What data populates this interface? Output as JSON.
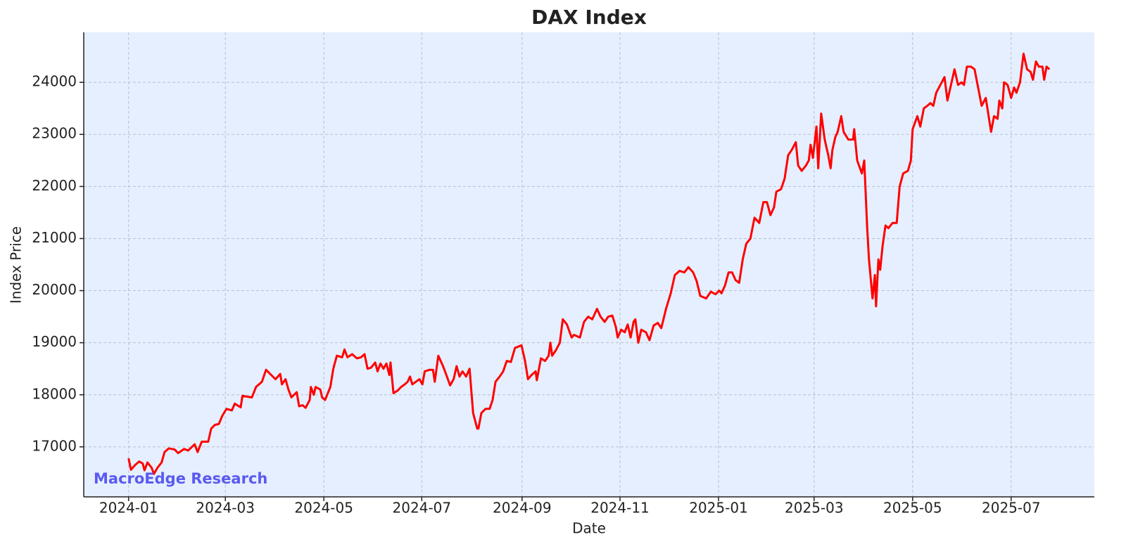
{
  "chart_data": {
    "type": "line",
    "title": "DAX Index",
    "xlabel": "Date",
    "ylabel": "Index Price",
    "watermark": "MacroEdge Research",
    "background": "#e5efff",
    "grid": true,
    "xlim": [
      2023.924,
      2025.637
    ],
    "ylim": [
      16040,
      24960
    ],
    "xticks": [
      {
        "value": 2024.0,
        "label": "2024-01"
      },
      {
        "value": 2024.164,
        "label": "2024-03"
      },
      {
        "value": 2024.331,
        "label": "2024-05"
      },
      {
        "value": 2024.497,
        "label": "2024-07"
      },
      {
        "value": 2024.667,
        "label": "2024-09"
      },
      {
        "value": 2024.833,
        "label": "2024-11"
      },
      {
        "value": 2025.0,
        "label": "2025-01"
      },
      {
        "value": 2025.162,
        "label": "2025-03"
      },
      {
        "value": 2025.329,
        "label": "2025-05"
      },
      {
        "value": 2025.496,
        "label": "2025-07"
      }
    ],
    "yticks": [
      17000,
      18000,
      19000,
      20000,
      21000,
      22000,
      23000,
      24000
    ],
    "x": [
      2024.0,
      2024.004,
      2024.011,
      2024.018,
      2024.024,
      2024.027,
      2024.032,
      2024.039,
      2024.043,
      2024.049,
      2024.056,
      2024.061,
      2024.068,
      2024.078,
      2024.084,
      2024.094,
      2024.101,
      2024.112,
      2024.117,
      2024.124,
      2024.135,
      2024.14,
      2024.146,
      2024.153,
      2024.159,
      2024.166,
      2024.175,
      2024.18,
      2024.19,
      2024.193,
      2024.209,
      2024.216,
      2024.226,
      2024.233,
      2024.24,
      2024.249,
      2024.257,
      2024.26,
      2024.266,
      2024.271,
      2024.276,
      2024.285,
      2024.289,
      2024.295,
      2024.3,
      2024.307,
      2024.309,
      2024.314,
      2024.317,
      2024.325,
      2024.328,
      2024.333,
      2024.342,
      2024.347,
      2024.353,
      2024.362,
      2024.366,
      2024.371,
      2024.379,
      2024.387,
      2024.394,
      2024.4,
      2024.405,
      2024.411,
      2024.418,
      2024.422,
      2024.427,
      2024.432,
      2024.437,
      2024.442,
      2024.444,
      2024.449,
      2024.456,
      2024.462,
      2024.468,
      2024.473,
      2024.477,
      2024.481,
      2024.487,
      2024.493,
      2024.498,
      2024.502,
      2024.51,
      2024.516,
      2024.519,
      2024.525,
      2024.533,
      2024.538,
      2024.545,
      2024.551,
      2024.556,
      2024.561,
      2024.566,
      2024.572,
      2024.578,
      2024.584,
      2024.591,
      2024.593,
      2024.598,
      2024.605,
      2024.612,
      2024.617,
      2024.622,
      2024.629,
      2024.635,
      2024.641,
      2024.648,
      2024.655,
      2024.666,
      2024.672,
      2024.677,
      2024.683,
      2024.69,
      2024.692,
      2024.699,
      2024.706,
      2024.712,
      2024.715,
      2024.718,
      2024.724,
      2024.731,
      2024.736,
      2024.743,
      2024.751,
      2024.755,
      2024.765,
      2024.772,
      2024.779,
      2024.786,
      2024.794,
      2024.8,
      2024.807,
      2024.813,
      2024.82,
      2024.826,
      2024.829,
      2024.835,
      2024.841,
      2024.846,
      2024.851,
      2024.856,
      2024.859,
      2024.864,
      2024.869,
      2024.877,
      2024.883,
      2024.89,
      2024.897,
      2024.903,
      2024.911,
      2024.919,
      2024.926,
      2024.934,
      2024.942,
      2024.949,
      2024.957,
      2024.963,
      2024.969,
      2024.979,
      2024.987,
      2024.995,
      2025.001,
      2025.005,
      2025.011,
      2025.017,
      2025.023,
      2025.029,
      2025.035,
      2025.041,
      2025.047,
      2025.054,
      2025.061,
      2025.069,
      2025.076,
      2025.082,
      2025.088,
      2025.094,
      2025.098,
      2025.106,
      2025.112,
      2025.118,
      2025.124,
      2025.131,
      2025.135,
      2025.141,
      2025.148,
      2025.153,
      2025.156,
      2025.16,
      2025.166,
      2025.169,
      2025.174,
      2025.18,
      2025.186,
      2025.19,
      2025.193,
      2025.198,
      2025.202,
      2025.208,
      2025.212,
      2025.22,
      2025.228,
      2025.23,
      2025.235,
      2025.243,
      2025.247,
      2025.252,
      2025.255,
      2025.261,
      2025.265,
      2025.267,
      2025.271,
      2025.274,
      2025.278,
      2025.283,
      2025.288,
      2025.295,
      2025.302,
      2025.307,
      2025.313,
      2025.321,
      2025.326,
      2025.329,
      2025.337,
      2025.342,
      2025.348,
      2025.354,
      2025.359,
      2025.364,
      2025.369,
      2025.376,
      2025.383,
      2025.388,
      2025.395,
      2025.4,
      2025.406,
      2025.412,
      2025.416,
      2025.421,
      2025.428,
      2025.434,
      2025.44,
      2025.446,
      2025.453,
      2025.462,
      2025.467,
      2025.473,
      2025.476,
      2025.481,
      2025.484,
      2025.49,
      2025.496,
      2025.501,
      2025.505,
      2025.511,
      2025.517,
      2025.523,
      2025.529,
      2025.533,
      2025.538,
      2025.543,
      2025.549,
      2025.552,
      2025.556,
      2025.561
    ],
    "series": [
      {
        "name": "DAX",
        "color": "#ff0000",
        "values": [
          16780,
          16560,
          16650,
          16720,
          16680,
          16550,
          16700,
          16600,
          16480,
          16600,
          16700,
          16900,
          16970,
          16950,
          16880,
          16960,
          16930,
          17050,
          16900,
          17100,
          17100,
          17350,
          17420,
          17440,
          17600,
          17730,
          17700,
          17830,
          17760,
          17980,
          17950,
          18150,
          18250,
          18480,
          18400,
          18300,
          18400,
          18200,
          18300,
          18100,
          17950,
          18050,
          17780,
          17800,
          17750,
          17900,
          18150,
          18000,
          18150,
          18100,
          17950,
          17900,
          18150,
          18500,
          18750,
          18720,
          18870,
          18720,
          18780,
          18700,
          18720,
          18780,
          18500,
          18520,
          18620,
          18450,
          18600,
          18500,
          18600,
          18380,
          18620,
          18030,
          18080,
          18150,
          18200,
          18250,
          18350,
          18200,
          18250,
          18300,
          18200,
          18450,
          18480,
          18480,
          18250,
          18750,
          18550,
          18400,
          18180,
          18300,
          18550,
          18350,
          18450,
          18350,
          18500,
          17650,
          17350,
          17350,
          17650,
          17730,
          17730,
          17900,
          18250,
          18350,
          18450,
          18650,
          18630,
          18900,
          18950,
          18650,
          18300,
          18380,
          18450,
          18280,
          18700,
          18650,
          18750,
          19000,
          18750,
          18850,
          19000,
          19450,
          19350,
          19100,
          19150,
          19100,
          19400,
          19500,
          19450,
          19650,
          19500,
          19400,
          19500,
          19520,
          19300,
          19100,
          19250,
          19200,
          19350,
          19100,
          19400,
          19450,
          19000,
          19250,
          19200,
          19050,
          19330,
          19380,
          19280,
          19650,
          19950,
          20300,
          20380,
          20350,
          20450,
          20350,
          20180,
          19900,
          19850,
          19980,
          19930,
          20000,
          19950,
          20100,
          20350,
          20350,
          20200,
          20150,
          20600,
          20900,
          21000,
          21400,
          21300,
          21700,
          21700,
          21450,
          21600,
          21900,
          21950,
          22150,
          22600,
          22700,
          22850,
          22400,
          22300,
          22400,
          22500,
          22800,
          22550,
          23150,
          22350,
          23400,
          22900,
          22600,
          22350,
          22700,
          22950,
          23050,
          23350,
          23050,
          22900,
          22900,
          23100,
          22500,
          22250,
          22500,
          21200,
          20600,
          19850,
          20300,
          19700,
          20600,
          20400,
          20850,
          21250,
          21200,
          21300,
          21300,
          22000,
          22250,
          22300,
          22500,
          23100,
          23350,
          23150,
          23500,
          23550,
          23600,
          23550,
          23800,
          23950,
          24100,
          23650,
          24000,
          24250,
          23950,
          24000,
          23950,
          24300,
          24300,
          24250,
          23900,
          23550,
          23700,
          23050,
          23350,
          23300,
          23650,
          23500,
          24000,
          23950,
          23700,
          23900,
          23800,
          24000,
          24550,
          24250,
          24200,
          24050,
          24400,
          24300,
          24300,
          24050,
          24300,
          24250
        ]
      }
    ]
  }
}
